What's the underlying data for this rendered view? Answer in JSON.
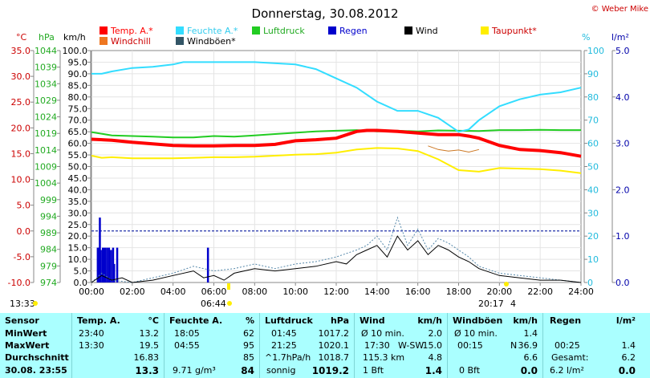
{
  "chart_data": {
    "type": "line",
    "title": "Donnerstag, 30.08.2012",
    "credit": "© Weber Mike",
    "legend": [
      {
        "label": "Temp. A.*",
        "color": "#ff0000"
      },
      {
        "label": "Feuchte A.*",
        "color": "#33ddff"
      },
      {
        "label": "Luftdruck",
        "color": "#22cc22"
      },
      {
        "label": "Regen",
        "color": "#0000cc"
      },
      {
        "label": "Wind",
        "color": "#000000"
      },
      {
        "label": "Taupunkt*",
        "color": "#ffee00"
      },
      {
        "label": "Windchill",
        "color": "#ee7722"
      },
      {
        "label": "Windböen*",
        "color": "#335566"
      }
    ],
    "axes": {
      "temp_unit": "°C",
      "temp_ticks": [
        "35.0",
        "30.0",
        "25.0",
        "20.0",
        "15.0",
        "10.0",
        "5.0",
        "0.0",
        "-5.0",
        "-10.0"
      ],
      "pressure_unit": "hPa",
      "pressure_ticks": [
        "1044",
        "1039",
        "1034",
        "1029",
        "1024",
        "1019",
        "1014",
        "1009",
        "1004",
        "999",
        "994",
        "989",
        "984",
        "979",
        "974"
      ],
      "wind_unit": "km/h",
      "wind_ticks": [
        "100.0",
        "95.0",
        "90.0",
        "85.0",
        "80.0",
        "75.0",
        "70.0",
        "65.0",
        "60.0",
        "55.0",
        "50.0",
        "45.0",
        "40.0",
        "35.0",
        "30.0",
        "25.0",
        "20.0",
        "15.0",
        "10.0",
        "5.0",
        "0.0"
      ],
      "humidity_unit": "%",
      "humidity_ticks": [
        "100",
        "90",
        "80",
        "70",
        "60",
        "50",
        "40",
        "30",
        "20",
        "10",
        "0"
      ],
      "rain_unit": "l/m²",
      "rain_ticks": [
        "5.0",
        "4.0",
        "3.0",
        "2.0",
        "1.0",
        "0.0"
      ],
      "x_ticks": [
        "00:00",
        "02:00",
        "04:00",
        "06:00",
        "08:00",
        "10:00",
        "12:00",
        "14:00",
        "16:00",
        "18:00",
        "20:00",
        "22:00",
        "24:00"
      ]
    },
    "x_range": [
      0,
      24
    ],
    "temp_range": [
      -10,
      35
    ],
    "humidity_range": [
      0,
      100
    ],
    "rain_range": [
      0,
      5
    ],
    "wind_range": [
      0,
      100
    ],
    "sun": {
      "sunrise": "06:44",
      "sunset": "20:17",
      "left_time": "13:33",
      "right_label": "4"
    },
    "temperature": [
      [
        0,
        17.8
      ],
      [
        1,
        17.6
      ],
      [
        2,
        17.2
      ],
      [
        3,
        16.9
      ],
      [
        4,
        16.6
      ],
      [
        5,
        16.5
      ],
      [
        6,
        16.5
      ],
      [
        7,
        16.6
      ],
      [
        8,
        16.6
      ],
      [
        9,
        16.8
      ],
      [
        10,
        17.5
      ],
      [
        11,
        17.7
      ],
      [
        12,
        18
      ],
      [
        13,
        19.3
      ],
      [
        13.5,
        19.5
      ],
      [
        14,
        19.5
      ],
      [
        15,
        19.3
      ],
      [
        16,
        19
      ],
      [
        17,
        18.7
      ],
      [
        18,
        18.7
      ],
      [
        18.5,
        18.4
      ],
      [
        19,
        18
      ],
      [
        20,
        16.6
      ],
      [
        21,
        15.8
      ],
      [
        22,
        15.6
      ],
      [
        23,
        15.2
      ],
      [
        24,
        14.5
      ]
    ],
    "humidity": [
      [
        0,
        90
      ],
      [
        0.5,
        90
      ],
      [
        1,
        91
      ],
      [
        2,
        92.5
      ],
      [
        3,
        93
      ],
      [
        4,
        94
      ],
      [
        4.5,
        95
      ],
      [
        6,
        95
      ],
      [
        8,
        95
      ],
      [
        10,
        94
      ],
      [
        11,
        92
      ],
      [
        12,
        88
      ],
      [
        13,
        84
      ],
      [
        14,
        78
      ],
      [
        15,
        74
      ],
      [
        16,
        74
      ],
      [
        17,
        71
      ],
      [
        18,
        65
      ],
      [
        18.5,
        66
      ],
      [
        19,
        70
      ],
      [
        20,
        76
      ],
      [
        21,
        79
      ],
      [
        22,
        81
      ],
      [
        23,
        82
      ],
      [
        24,
        84
      ]
    ],
    "dewpoint": [
      [
        0,
        14.6
      ],
      [
        0.5,
        14.2
      ],
      [
        1,
        14.3
      ],
      [
        2,
        14.1
      ],
      [
        3,
        14.1
      ],
      [
        4,
        14.1
      ],
      [
        5,
        14.2
      ],
      [
        6,
        14.3
      ],
      [
        7,
        14.3
      ],
      [
        8,
        14.4
      ],
      [
        9,
        14.6
      ],
      [
        10,
        14.8
      ],
      [
        11,
        14.9
      ],
      [
        12,
        15.2
      ],
      [
        13,
        15.8
      ],
      [
        14,
        16.1
      ],
      [
        15,
        16
      ],
      [
        16,
        15.5
      ],
      [
        17,
        13.9
      ],
      [
        18,
        11.8
      ],
      [
        19,
        11.5
      ],
      [
        20,
        12.2
      ],
      [
        22,
        12
      ],
      [
        23,
        11.7
      ],
      [
        24,
        11.2
      ]
    ],
    "windchill": [
      [
        16.5,
        16.5
      ],
      [
        17,
        15.8
      ],
      [
        17.5,
        15.5
      ],
      [
        18,
        15.7
      ],
      [
        18.5,
        15.3
      ],
      [
        19,
        15.8
      ]
    ],
    "pressure": [
      [
        0,
        1019.4
      ],
      [
        1,
        1018.4
      ],
      [
        2,
        1018.2
      ],
      [
        3,
        1018.0
      ],
      [
        4,
        1017.8
      ],
      [
        5,
        1017.8
      ],
      [
        6,
        1018.2
      ],
      [
        7,
        1018.0
      ],
      [
        8,
        1018.4
      ],
      [
        9,
        1018.8
      ],
      [
        10,
        1019.2
      ],
      [
        11,
        1019.6
      ],
      [
        12,
        1019.8
      ],
      [
        13,
        1020.0
      ],
      [
        14,
        1019.6
      ],
      [
        15,
        1019.8
      ],
      [
        16,
        1019.6
      ],
      [
        17,
        1019.9
      ],
      [
        18,
        1019.8
      ],
      [
        19,
        1019.7
      ],
      [
        20,
        1020.0
      ],
      [
        21,
        1020.0
      ],
      [
        22,
        1020.1
      ],
      [
        23,
        1020.0
      ],
      [
        24,
        1020.0
      ]
    ],
    "wind": [
      [
        0,
        0
      ],
      [
        0.5,
        3
      ],
      [
        1,
        1
      ],
      [
        1.5,
        2
      ],
      [
        2,
        0
      ],
      [
        3,
        1
      ],
      [
        4,
        3
      ],
      [
        5,
        5
      ],
      [
        5.5,
        2
      ],
      [
        6,
        3
      ],
      [
        6.5,
        1
      ],
      [
        7,
        4
      ],
      [
        8,
        6
      ],
      [
        9,
        5
      ],
      [
        10,
        6
      ],
      [
        11,
        7
      ],
      [
        12,
        9
      ],
      [
        12.5,
        8
      ],
      [
        13,
        12
      ],
      [
        13.5,
        14
      ],
      [
        14,
        16
      ],
      [
        14.5,
        11
      ],
      [
        15,
        20
      ],
      [
        15.5,
        14
      ],
      [
        16,
        18
      ],
      [
        16.5,
        12
      ],
      [
        17,
        16
      ],
      [
        17.5,
        14
      ],
      [
        18,
        11
      ],
      [
        18.5,
        9
      ],
      [
        19,
        6
      ],
      [
        20,
        3
      ],
      [
        21,
        2
      ],
      [
        22,
        1
      ],
      [
        23,
        1
      ],
      [
        24,
        0
      ]
    ],
    "gusts": [
      [
        0,
        0
      ],
      [
        0.5,
        4
      ],
      [
        1,
        1
      ],
      [
        2,
        0
      ],
      [
        3,
        2
      ],
      [
        4,
        4
      ],
      [
        5,
        7
      ],
      [
        6,
        5
      ],
      [
        7,
        6
      ],
      [
        8,
        8
      ],
      [
        9,
        6
      ],
      [
        10,
        8
      ],
      [
        11,
        9
      ],
      [
        12,
        11
      ],
      [
        13,
        14
      ],
      [
        13.5,
        16
      ],
      [
        14,
        20
      ],
      [
        14.5,
        14
      ],
      [
        15,
        28
      ],
      [
        15.5,
        16
      ],
      [
        16,
        23
      ],
      [
        16.5,
        14
      ],
      [
        17,
        19
      ],
      [
        17.5,
        17
      ],
      [
        18,
        14
      ],
      [
        18.5,
        11
      ],
      [
        19,
        7
      ],
      [
        20,
        4
      ],
      [
        21,
        3
      ],
      [
        22,
        2
      ],
      [
        23,
        1
      ],
      [
        24,
        0
      ]
    ],
    "rain": [
      [
        0.3,
        0.75
      ],
      [
        0.35,
        0.75
      ],
      [
        0.4,
        1.4
      ],
      [
        0.45,
        0.7
      ],
      [
        0.55,
        0.75
      ],
      [
        0.65,
        0.75
      ],
      [
        0.75,
        0.75
      ],
      [
        0.85,
        0.75
      ],
      [
        0.95,
        0.7
      ],
      [
        1.05,
        0.75
      ],
      [
        1.1,
        0.4
      ],
      [
        1.25,
        0.75
      ],
      [
        5.7,
        0.75
      ]
    ],
    "zero_line_value": 0
  },
  "table": {
    "sensor": {
      "header": "Sensor",
      "min": "MinWert",
      "max": "MaxWert",
      "avg": "Durchschnitt",
      "current": "30.08. 23:55"
    },
    "temp": {
      "header": "Temp. A.",
      "unit": "°C",
      "min_time": "23:40",
      "min_val": "13.2",
      "max_time": "13:30",
      "max_val": "19.5",
      "avg_val": "16.83",
      "current_val": "13.3"
    },
    "humidity": {
      "header": "Feuchte A.",
      "unit": "%",
      "min_time": "18:05",
      "min_val": "62",
      "max_time": "04:55",
      "max_val": "95",
      "avg_val": "85",
      "current_extra": "9.71 g/m³",
      "current_val": "84"
    },
    "pressure": {
      "header": "Luftdruck",
      "unit": "hPa",
      "min_time": "01:45",
      "min_val": "1017.2",
      "max_time": "21:25",
      "max_val": "1020.1",
      "avg_label": "^1.7hPa/h",
      "avg_val": "1018.7",
      "current_label": "sonnig",
      "current_val": "1019.2"
    },
    "wind": {
      "header": "Wind",
      "unit": "km/h",
      "row1_label": "Ø 10 min.",
      "row1_val": "2.0",
      "row2_time": "17:30",
      "row2_dir": "W-SW",
      "row2_val": "15.0",
      "row3_label": "115.3 km",
      "row3_val": "4.8",
      "current_label": "1 Bft",
      "current_val": "1.4"
    },
    "gusts": {
      "header": "Windböen",
      "unit": "km/h",
      "row1_label": "Ø 10 min.",
      "row1_val": "1.4",
      "row2_time": "00:15",
      "row2_dir": "N",
      "row2_val": "36.9",
      "row3_val": "6.6",
      "current_label": "0 Bft",
      "current_val": "0.0"
    },
    "rain": {
      "header": "Regen",
      "unit": "l/m²",
      "row2_time": "00:25",
      "row2_val": "1.4",
      "row3_label": "Gesamt:",
      "row3_val": "6.2",
      "current_label": "6.2 l/m²",
      "current_val": "0.0"
    }
  }
}
